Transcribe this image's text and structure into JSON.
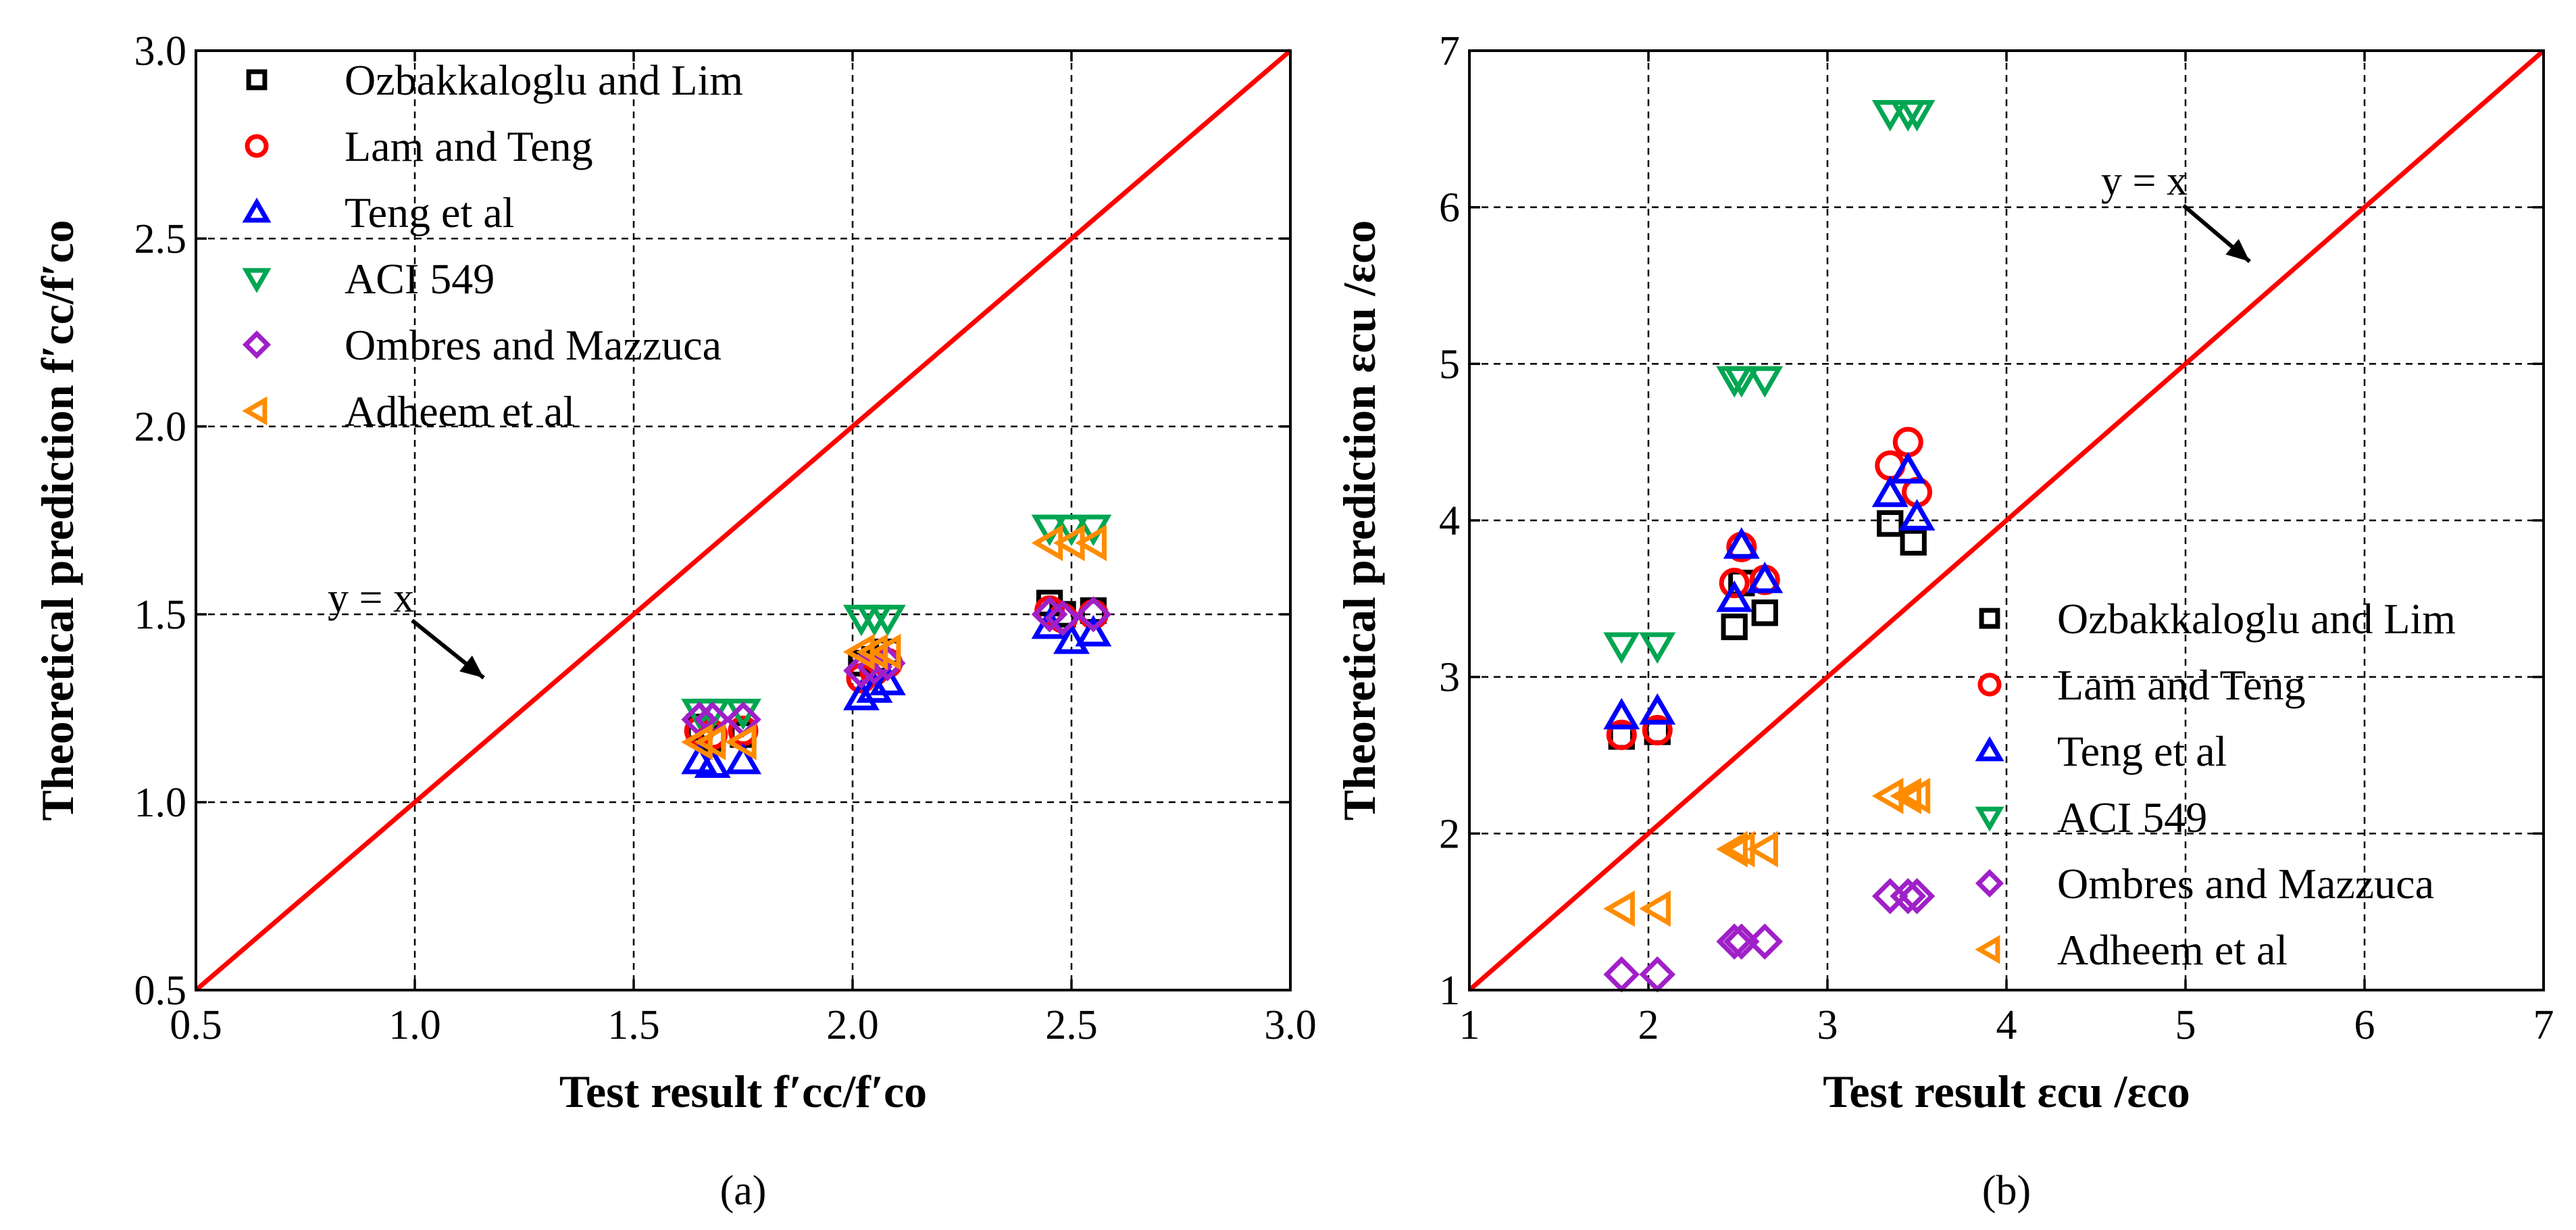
{
  "chart_data": [
    {
      "type": "scatter",
      "panel_label": "(a)",
      "xlabel": "Test result f′cc/f′co",
      "ylabel": "Theoretical prediction f′cc/f′co",
      "xlim": [
        0.5,
        3.0
      ],
      "ylim": [
        0.5,
        3.0
      ],
      "xticks": [
        "0.5",
        "1.0",
        "1.5",
        "2.0",
        "2.5",
        "3.0"
      ],
      "yticks": [
        "0.5",
        "1.0",
        "1.5",
        "2.0",
        "2.5",
        "3.0"
      ],
      "grid": true,
      "legend_position": "top-left",
      "reference_line": {
        "label": "y = x"
      },
      "series": [
        {
          "name": "Ozbakkaloglu and Lim",
          "marker": "square",
          "color": "#000000",
          "x": [
            1.65,
            1.68,
            1.75,
            2.02,
            2.05,
            2.08,
            2.45,
            2.48,
            2.55
          ],
          "y": [
            1.2,
            1.17,
            1.18,
            1.37,
            1.38,
            1.4,
            1.53,
            1.5,
            1.51
          ]
        },
        {
          "name": "Lam and Teng",
          "marker": "circle",
          "color": "#ff0000",
          "x": [
            1.65,
            1.68,
            1.75,
            2.02,
            2.05,
            2.08,
            2.45,
            2.48,
            2.55
          ],
          "y": [
            1.19,
            1.18,
            1.19,
            1.33,
            1.35,
            1.37,
            1.51,
            1.49,
            1.5
          ]
        },
        {
          "name": " Teng et al",
          "marker": "triangle-up",
          "color": "#0000ff",
          "x": [
            1.65,
            1.68,
            1.75,
            2.02,
            2.05,
            2.08,
            2.45,
            2.5,
            2.55
          ],
          "y": [
            1.11,
            1.1,
            1.11,
            1.28,
            1.3,
            1.32,
            1.47,
            1.43,
            1.45
          ]
        },
        {
          "name": "ACI 549",
          "marker": "triangle-down",
          "color": "#00a651",
          "x": [
            1.65,
            1.68,
            1.75,
            2.02,
            2.05,
            2.08,
            2.45,
            2.5,
            2.55
          ],
          "y": [
            1.24,
            1.24,
            1.24,
            1.49,
            1.49,
            1.49,
            1.73,
            1.73,
            1.73
          ]
        },
        {
          "name": "Ombres and Mazzuca",
          "marker": "diamond",
          "color": "#a020c8",
          "x": [
            1.65,
            1.68,
            1.75,
            2.02,
            2.05,
            2.08,
            2.45,
            2.48,
            2.55
          ],
          "y": [
            1.22,
            1.22,
            1.22,
            1.35,
            1.36,
            1.37,
            1.5,
            1.49,
            1.5
          ]
        },
        {
          "name": "Adheem et al",
          "marker": "triangle-left",
          "color": "#ff8c00",
          "x": [
            1.65,
            1.68,
            1.75,
            2.02,
            2.05,
            2.08,
            2.45,
            2.5,
            2.55
          ],
          "y": [
            1.16,
            1.16,
            1.16,
            1.4,
            1.4,
            1.4,
            1.69,
            1.69,
            1.69
          ]
        }
      ]
    },
    {
      "type": "scatter",
      "panel_label": "(b)",
      "xlabel": "Test result εcu /εco",
      "ylabel": "Theoretical prediction εcu /εco",
      "xlim": [
        1,
        7
      ],
      "ylim": [
        1,
        7
      ],
      "xticks": [
        "1",
        "2",
        "3",
        "4",
        "5",
        "6",
        "7"
      ],
      "yticks": [
        "1",
        "2",
        "3",
        "4",
        "5",
        "6",
        "7"
      ],
      "grid": true,
      "legend_position": "bottom-right",
      "reference_line": {
        "label": "y = x"
      },
      "series": [
        {
          "name": "Ozbakkaloglu and Lim",
          "marker": "square",
          "color": "#000000",
          "x": [
            1.85,
            2.05,
            2.48,
            2.52,
            2.65,
            3.35,
            3.48
          ],
          "y": [
            2.62,
            2.65,
            3.32,
            3.6,
            3.41,
            3.98,
            3.86
          ]
        },
        {
          "name": "Lam and Teng",
          "marker": "circle",
          "color": "#ff0000",
          "x": [
            1.85,
            2.05,
            2.48,
            2.52,
            2.65,
            3.35,
            3.45,
            3.5
          ],
          "y": [
            2.63,
            2.66,
            3.6,
            3.83,
            3.62,
            4.35,
            4.5,
            4.18
          ]
        },
        {
          "name": " Teng et al",
          "marker": "triangle-up",
          "color": "#0000ff",
          "x": [
            1.85,
            2.05,
            2.48,
            2.52,
            2.65,
            3.35,
            3.45,
            3.5
          ],
          "y": [
            2.75,
            2.78,
            3.5,
            3.84,
            3.62,
            4.17,
            4.32,
            4.02
          ]
        },
        {
          "name": "ACI 549",
          "marker": "triangle-down",
          "color": "#00a651",
          "x": [
            1.85,
            2.05,
            2.48,
            2.52,
            2.65,
            3.35,
            3.45,
            3.5
          ],
          "y": [
            3.2,
            3.2,
            4.9,
            4.9,
            4.9,
            6.6,
            6.6,
            6.6
          ]
        },
        {
          "name": "Ombres and Mazzuca",
          "marker": "diamond",
          "color": "#a020c8",
          "x": [
            1.85,
            2.05,
            2.48,
            2.52,
            2.65,
            3.35,
            3.45,
            3.5
          ],
          "y": [
            1.1,
            1.1,
            1.31,
            1.31,
            1.31,
            1.6,
            1.6,
            1.6
          ]
        },
        {
          "name": "Adheem et al",
          "marker": "triangle-left",
          "color": "#ff8c00",
          "x": [
            1.85,
            2.05,
            2.48,
            2.52,
            2.65,
            3.35,
            3.45,
            3.5
          ],
          "y": [
            1.52,
            1.52,
            1.9,
            1.9,
            1.9,
            2.24,
            2.24,
            2.24
          ]
        }
      ]
    }
  ]
}
